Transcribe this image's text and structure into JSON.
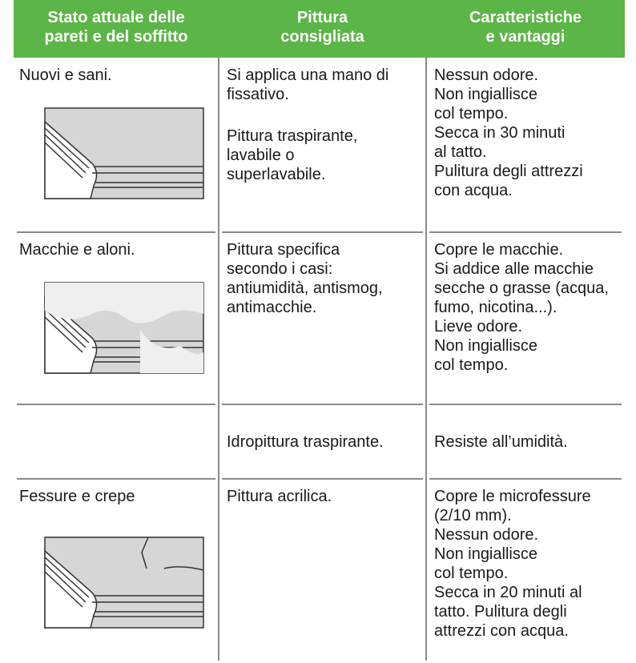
{
  "table": {
    "header": [
      [
        "Stato attuale delle",
        "pareti e del soffitto"
      ],
      [
        "Pittura",
        "consigliata"
      ],
      [
        "Caratteristiche",
        "e vantaggi"
      ]
    ],
    "rows": [
      [
        [
          [
            "Nuovi e sani."
          ]
        ],
        [
          [
            "Si applica una mano di",
            "fissativo."
          ],
          [
            "Pittura traspirante,",
            "lavabile o",
            "superlavabile."
          ]
        ],
        [
          [
            "Nessun odore.",
            "Non ingiallisce",
            "col tempo.",
            "Secca in 30 minuti",
            "al tatto.",
            "Pulitura degli attrezzi",
            "con acqua."
          ]
        ]
      ],
      [
        [
          [
            "Macchie e aloni."
          ]
        ],
        [
          [
            "Pittura specifica",
            "secondo i casi:",
            "antiumidità, antismog,",
            "antimacchie."
          ]
        ],
        [
          [
            "Copre le macchie.",
            "Si addice alle macchie",
            "secche o grasse (acqua,",
            "fumo, nicotina...).",
            "Lieve odore.",
            "Non ingiallisce",
            "col tempo."
          ]
        ]
      ],
      [
        [],
        [
          [
            "Idropittura traspirante."
          ]
        ],
        [
          [
            "Resiste all’umidità."
          ]
        ]
      ],
      [
        [
          [
            "Fessure e crepe"
          ]
        ],
        [
          [
            "Pittura acrilica."
          ]
        ],
        [
          [
            "Copre le microfessure",
            "(2/10 mm).",
            "Nessun odore.",
            "Non ingiallisce",
            "col tempo.",
            "Secca in 20 minuti al",
            "tatto. Pulitura degli",
            "attrezzi con acqua."
          ]
        ]
      ]
    ]
  }
}
